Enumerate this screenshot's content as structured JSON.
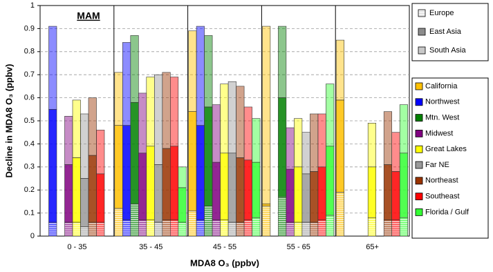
{
  "chart_data": {
    "type": "stacked-bar",
    "title": "MAM",
    "x_label": "MDA8 O₃ (ppbv)",
    "y_label": "Decline in MDA8 O₃ (ppbv)",
    "categories": [
      "0 - 35",
      "35 - 45",
      "45 - 55",
      "55 - 65",
      "65+"
    ],
    "ylim": [
      0,
      1
    ],
    "yticks": [
      0,
      0.1,
      0.2,
      0.3,
      0.4,
      0.5,
      0.6,
      0.7,
      0.8,
      0.9,
      1
    ],
    "grid": true,
    "sources": [
      {
        "name": "Europe",
        "color": "#d9d9d9"
      },
      {
        "name": "East Asia",
        "color": "#8c8c8c"
      },
      {
        "name": "South Asia",
        "color": "#c8c8c8"
      }
    ],
    "series": [
      {
        "name": "California",
        "color": "#ffc000",
        "values": [
          null,
          [
            0.12,
            0.36,
            0.23
          ],
          [
            0.11,
            0.43,
            0.35
          ],
          [
            0.13,
            0.01,
            0.77
          ],
          [
            0.19,
            0.4,
            0.26
          ]
        ]
      },
      {
        "name": "Northwest",
        "color": "#0000ff",
        "values": [
          [
            0.06,
            0.49,
            0.36
          ],
          [
            0.07,
            0.41,
            0.36
          ],
          [
            0.07,
            0.41,
            0.43
          ],
          null,
          null
        ]
      },
      {
        "name": "Mtn. West",
        "color": "#008000",
        "values": [
          null,
          [
            0.14,
            0.44,
            0.29
          ],
          [
            0.13,
            0.43,
            0.31
          ],
          [
            0.17,
            0.43,
            0.31
          ],
          null
        ]
      },
      {
        "name": "Midwest",
        "color": "#800080",
        "values": [
          [
            0.06,
            0.25,
            0.21
          ],
          [
            0.07,
            0.29,
            0.26
          ],
          [
            0.07,
            0.25,
            0.25
          ],
          [
            0.06,
            0.23,
            0.18
          ],
          null
        ]
      },
      {
        "name": "Great Lakes",
        "color": "#ffff00",
        "values": [
          [
            0.06,
            0.28,
            0.25
          ],
          [
            0.07,
            0.32,
            0.3
          ],
          [
            0.07,
            0.29,
            0.3
          ],
          [
            0.06,
            0.24,
            0.21
          ],
          [
            0.08,
            0.22,
            0.19
          ]
        ]
      },
      {
        "name": "Far NE",
        "color": "#999999",
        "values": [
          [
            0.04,
            0.21,
            0.28
          ],
          [
            0.06,
            0.25,
            0.39
          ],
          [
            0.06,
            0.3,
            0.31
          ],
          [
            0.06,
            0.21,
            0.18
          ],
          null
        ]
      },
      {
        "name": "Northeast",
        "color": "#993300",
        "values": [
          [
            0.06,
            0.29,
            0.25
          ],
          [
            0.07,
            0.31,
            0.33
          ],
          [
            0.06,
            0.28,
            0.31
          ],
          [
            0.06,
            0.22,
            0.25
          ],
          [
            0.07,
            0.24,
            0.23
          ]
        ]
      },
      {
        "name": "Southeast",
        "color": "#ff0000",
        "values": [
          [
            0.06,
            0.21,
            0.19
          ],
          [
            0.07,
            0.32,
            0.3
          ],
          [
            0.07,
            0.26,
            0.23
          ],
          [
            0.07,
            0.23,
            0.23
          ],
          [
            0.07,
            0.21,
            0.17
          ]
        ]
      },
      {
        "name": "Florida / Gulf",
        "color": "#33ff33",
        "values": [
          null,
          [
            0.06,
            0.15,
            0.09
          ],
          [
            0.08,
            0.24,
            0.19
          ],
          [
            0.09,
            0.3,
            0.27
          ],
          [
            0.08,
            0.28,
            0.21
          ]
        ]
      }
    ]
  }
}
